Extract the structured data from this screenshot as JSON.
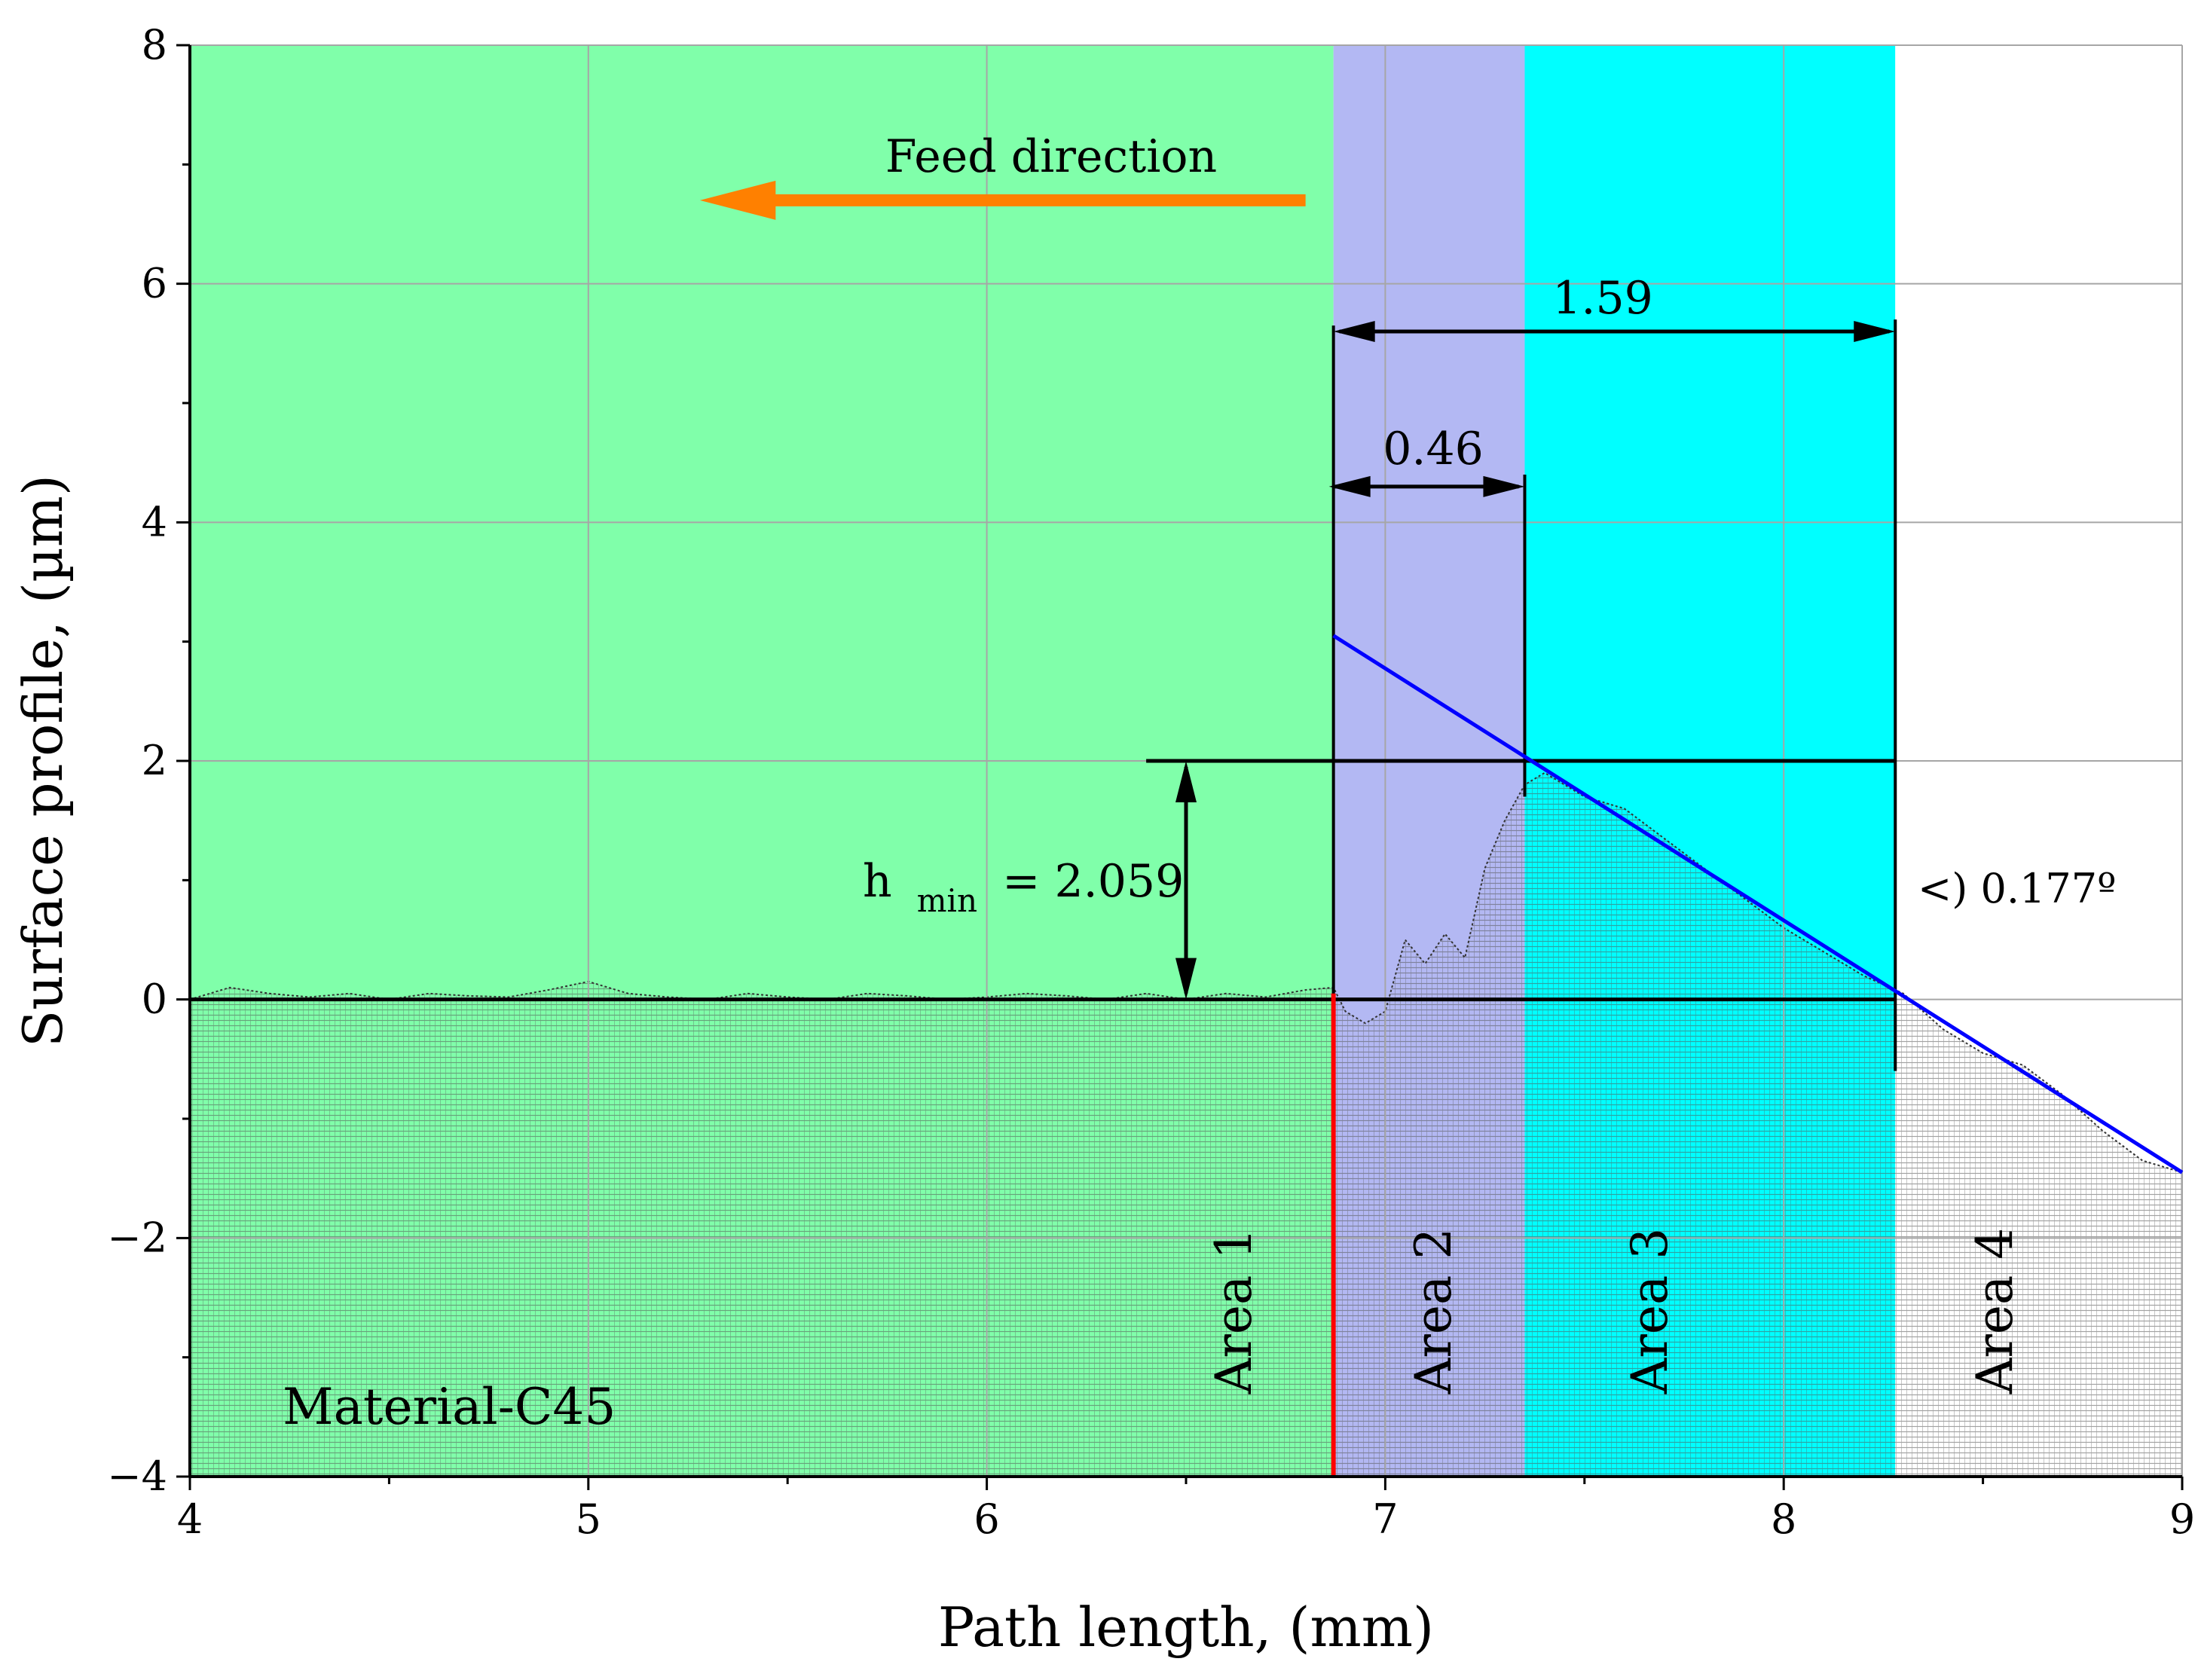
{
  "chart_data": {
    "type": "area",
    "xlabel": "Path length, (mm)",
    "ylabel": "Surface profile, (µm)",
    "xlim": [
      4,
      9
    ],
    "ylim": [
      -4,
      8
    ],
    "xticks": [
      4,
      5,
      6,
      7,
      8,
      9
    ],
    "yticks": [
      -4,
      -2,
      0,
      2,
      4,
      6,
      8
    ],
    "xtick_labels": [
      "4",
      "5",
      "6",
      "7",
      "8",
      "9"
    ],
    "ytick_labels": [
      "−4",
      "−2",
      "0",
      "2",
      "4",
      "6",
      "8"
    ],
    "grid": true,
    "regions": [
      {
        "name": "Area 1",
        "x_start": 4.0,
        "x_end": 6.87,
        "color": "#80ffaa"
      },
      {
        "name": "Area 2",
        "x_start": 6.87,
        "x_end": 7.35,
        "color": "#b3b8f3"
      },
      {
        "name": "Area 3",
        "x_start": 7.35,
        "x_end": 8.28,
        "color": "#00ffff"
      },
      {
        "name": "Area 4",
        "x_start": 8.28,
        "x_end": 9.0,
        "color": "#ffffff"
      }
    ],
    "series": [
      {
        "name": "Surface profile",
        "color": "#333333",
        "x": [
          4.0,
          4.1,
          4.2,
          4.3,
          4.4,
          4.5,
          4.6,
          4.7,
          4.8,
          4.9,
          5.0,
          5.1,
          5.2,
          5.3,
          5.4,
          5.5,
          5.6,
          5.7,
          5.8,
          5.9,
          6.0,
          6.1,
          6.2,
          6.3,
          6.4,
          6.5,
          6.6,
          6.7,
          6.8,
          6.87,
          6.9,
          6.95,
          7.0,
          7.05,
          7.1,
          7.15,
          7.2,
          7.25,
          7.3,
          7.35,
          7.4,
          7.5,
          7.6,
          7.7,
          7.8,
          7.9,
          8.0,
          8.1,
          8.2,
          8.3,
          8.4,
          8.5,
          8.6,
          8.7,
          8.8,
          8.9,
          9.0
        ],
        "y": [
          0.0,
          0.1,
          0.05,
          0.02,
          0.05,
          0.0,
          0.05,
          0.03,
          0.02,
          0.08,
          0.15,
          0.05,
          0.02,
          0.0,
          0.05,
          0.02,
          0.0,
          0.05,
          0.03,
          0.0,
          0.02,
          0.05,
          0.03,
          0.0,
          0.05,
          0.0,
          0.05,
          0.02,
          0.08,
          0.1,
          -0.1,
          -0.2,
          -0.1,
          0.5,
          0.3,
          0.55,
          0.35,
          1.1,
          1.5,
          1.8,
          1.9,
          1.7,
          1.6,
          1.35,
          1.1,
          0.85,
          0.6,
          0.4,
          0.2,
          0.05,
          -0.25,
          -0.45,
          -0.55,
          -0.8,
          -1.1,
          -1.35,
          -1.45
        ]
      },
      {
        "name": "Slope line",
        "color": "#0000ff",
        "x": [
          6.87,
          9.0
        ],
        "y": [
          3.05,
          -1.45
        ]
      }
    ],
    "baseline": {
      "y": 0,
      "x_start": 4.0,
      "x_end": 8.28
    },
    "h_min_line": {
      "y": 2.0,
      "x_start": 6.4,
      "x_end": 8.28
    },
    "area1_boundary_x": 6.87,
    "annotations": {
      "feed_direction": "Feed direction",
      "dim_159": "1.59",
      "dim_046": "0.46",
      "h_min_main": "h",
      "h_min_sub": "min",
      "h_min_value": "= 2.059",
      "angle": "<) 0.177º",
      "material": "Material-C45"
    },
    "colors": {
      "arrow": "#ff8000",
      "boundary": "#ff0000",
      "slope": "#0000ff",
      "grid": "#a6a6a6"
    }
  }
}
